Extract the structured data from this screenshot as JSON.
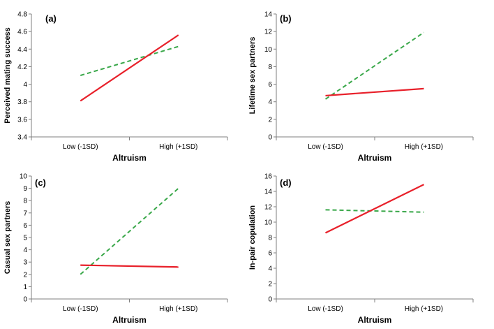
{
  "colors": {
    "series_solid": "#e8202a",
    "series_dashed": "#3aa84a"
  },
  "chart_data": [
    {
      "type": "line",
      "panel_label": "(a)",
      "categories": [
        "Low (-1SD)",
        "High (+1SD)"
      ],
      "xlabel": "Altruism",
      "ylabel": "Perceived mating success",
      "ylim": [
        3.4,
        4.8
      ],
      "yticks": [
        "3.4",
        "3.6",
        "3.8",
        "4",
        "4.2",
        "4.4",
        "4.6",
        "4.8"
      ],
      "series": [
        {
          "name": "solid",
          "style": "solid",
          "values": [
            3.81,
            4.56
          ]
        },
        {
          "name": "dashed",
          "style": "dashed",
          "values": [
            4.1,
            4.43
          ]
        }
      ]
    },
    {
      "type": "line",
      "panel_label": "(b)",
      "categories": [
        "Low (-1SD)",
        "High (+1SD)"
      ],
      "xlabel": "Altruism",
      "ylabel": "Lifetime sex partners",
      "ylim": [
        0,
        14
      ],
      "yticks": [
        "0",
        "2",
        "4",
        "6",
        "8",
        "10",
        "12",
        "14"
      ],
      "series": [
        {
          "name": "solid",
          "style": "solid",
          "values": [
            4.7,
            5.5
          ]
        },
        {
          "name": "dashed",
          "style": "dashed",
          "values": [
            4.3,
            11.9
          ]
        }
      ]
    },
    {
      "type": "line",
      "panel_label": "(c)",
      "categories": [
        "Low (-1SD)",
        "High (+1SD)"
      ],
      "xlabel": "Altruism",
      "ylabel": "Casual sex partners",
      "ylim": [
        0,
        10
      ],
      "yticks": [
        "0",
        "1",
        "2",
        "3",
        "4",
        "5",
        "6",
        "7",
        "8",
        "9",
        "10"
      ],
      "series": [
        {
          "name": "solid",
          "style": "solid",
          "values": [
            2.75,
            2.6
          ]
        },
        {
          "name": "dashed",
          "style": "dashed",
          "values": [
            2.0,
            9.0
          ]
        }
      ]
    },
    {
      "type": "line",
      "panel_label": "(d)",
      "categories": [
        "Low (-1SD)",
        "High (+1SD)"
      ],
      "xlabel": "Altruism",
      "ylabel": "In-pair copulation",
      "ylim": [
        0,
        16
      ],
      "yticks": [
        "0",
        "2",
        "4",
        "6",
        "8",
        "10",
        "12",
        "14",
        "16"
      ],
      "series": [
        {
          "name": "solid",
          "style": "solid",
          "values": [
            8.6,
            14.9
          ]
        },
        {
          "name": "dashed",
          "style": "dashed",
          "values": [
            11.6,
            11.3
          ]
        }
      ]
    }
  ]
}
